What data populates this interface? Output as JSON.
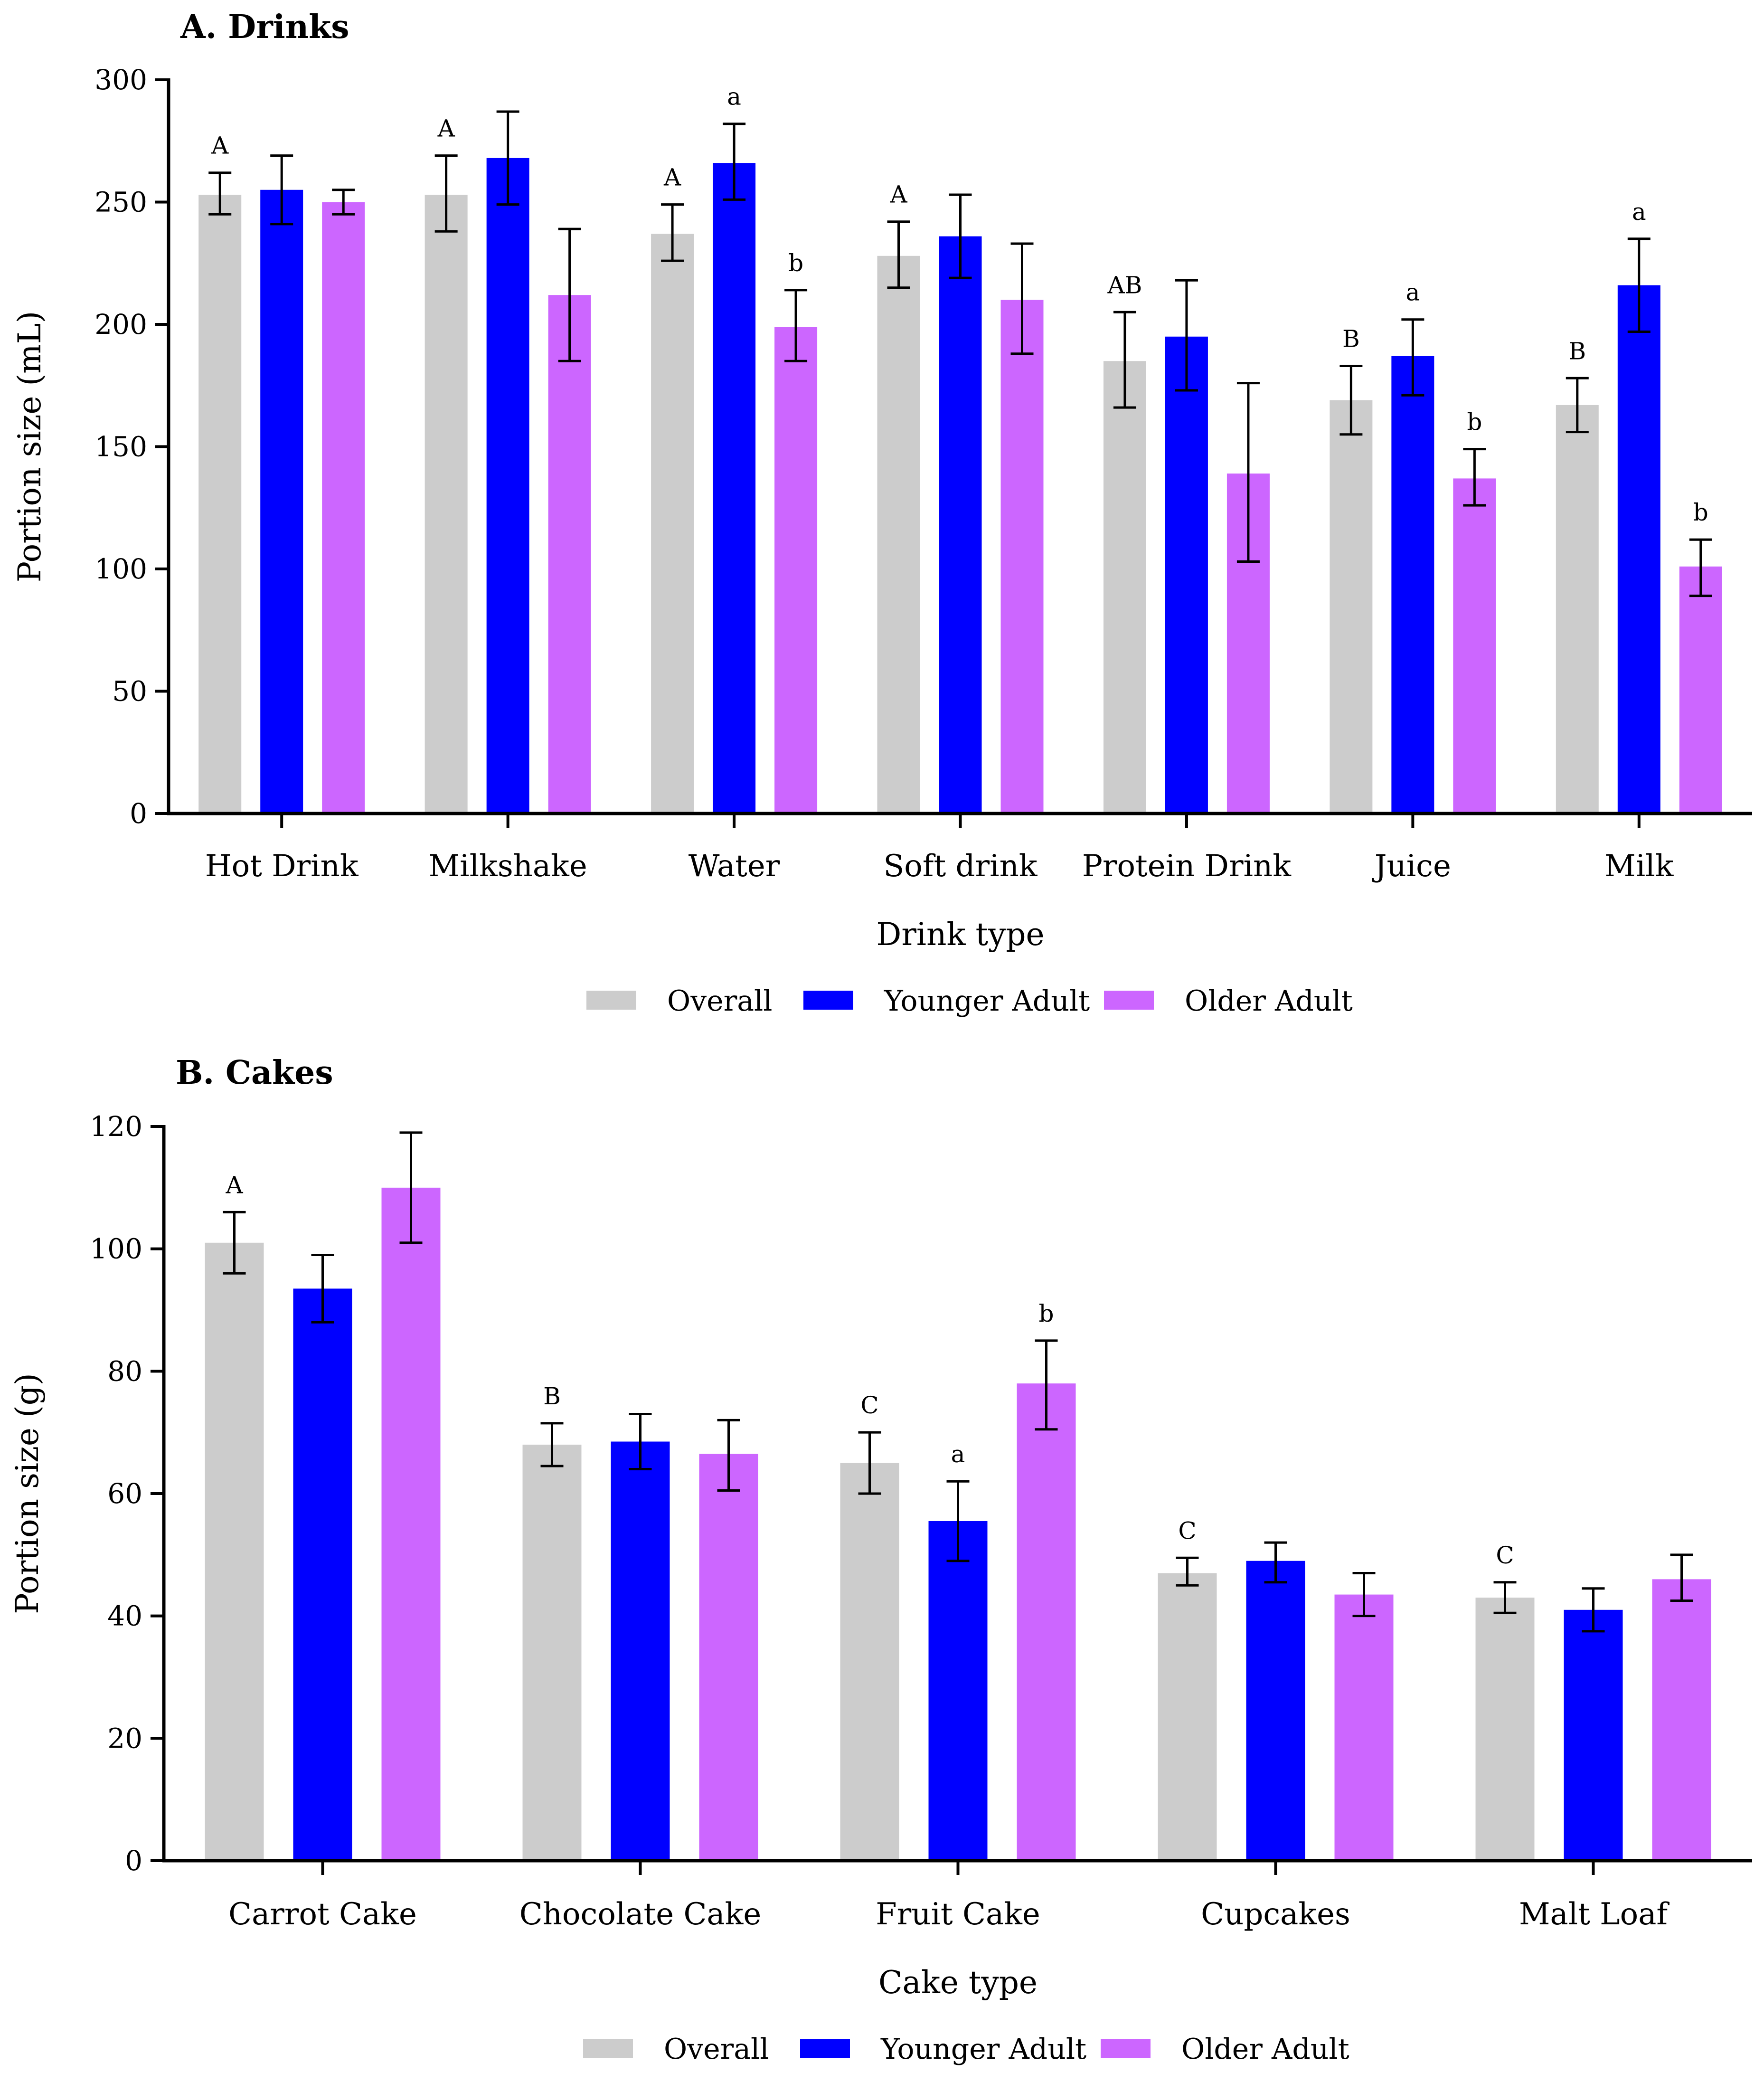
{
  "chart_data": [
    {
      "type": "bar",
      "title": "A. Drinks",
      "xlabel": "Drink type",
      "ylabel": "Portion size (mL)",
      "ylim": [
        0,
        300
      ],
      "yticks": [
        0,
        50,
        100,
        150,
        200,
        250,
        300
      ],
      "categories": [
        "Hot Drink",
        "Milkshake",
        "Water",
        "Soft drink",
        "Protein Drink",
        "Juice",
        "Milk"
      ],
      "series": [
        {
          "name": "Overall",
          "color": "#cccccc",
          "values": [
            253,
            253,
            237,
            228,
            185,
            169,
            167
          ],
          "err_low": [
            245,
            238,
            226,
            215,
            166,
            155,
            156
          ],
          "err_high": [
            262,
            269,
            249,
            242,
            205,
            183,
            178
          ]
        },
        {
          "name": "Younger Adult",
          "color": "#0000ff",
          "values": [
            255,
            268,
            266,
            236,
            195,
            187,
            216
          ],
          "err_low": [
            241,
            249,
            251,
            219,
            173,
            171,
            197
          ],
          "err_high": [
            269,
            287,
            282,
            253,
            218,
            202,
            235
          ]
        },
        {
          "name": "Older Adult",
          "color": "#cc66ff",
          "values": [
            250,
            212,
            199,
            210,
            139,
            137,
            101
          ],
          "err_low": [
            245,
            185,
            185,
            188,
            103,
            126,
            89
          ],
          "err_high": [
            255,
            239,
            214,
            233,
            176,
            149,
            112
          ]
        }
      ],
      "annotations": [
        {
          "category": 0,
          "series": 0,
          "text": "A"
        },
        {
          "category": 1,
          "series": 0,
          "text": "A"
        },
        {
          "category": 2,
          "series": 0,
          "text": "A"
        },
        {
          "category": 2,
          "series": 1,
          "text": "a"
        },
        {
          "category": 2,
          "series": 2,
          "text": "b"
        },
        {
          "category": 3,
          "series": 0,
          "text": "A"
        },
        {
          "category": 4,
          "series": 0,
          "text": "AB"
        },
        {
          "category": 5,
          "series": 0,
          "text": "B"
        },
        {
          "category": 5,
          "series": 1,
          "text": "a"
        },
        {
          "category": 5,
          "series": 2,
          "text": "b"
        },
        {
          "category": 6,
          "series": 0,
          "text": "B"
        },
        {
          "category": 6,
          "series": 1,
          "text": "a"
        },
        {
          "category": 6,
          "series": 2,
          "text": "b"
        }
      ],
      "legend": "bottom"
    },
    {
      "type": "bar",
      "title": "B. Cakes",
      "xlabel": "Cake type",
      "ylabel": "Portion size (g)",
      "ylim": [
        0,
        120
      ],
      "yticks": [
        0,
        20,
        40,
        60,
        80,
        100,
        120
      ],
      "categories": [
        "Carrot Cake",
        "Chocolate Cake",
        "Fruit Cake",
        "Cupcakes",
        "Malt Loaf"
      ],
      "series": [
        {
          "name": "Overall",
          "color": "#cccccc",
          "values": [
            101,
            68,
            65,
            47,
            43
          ],
          "err_low": [
            96,
            64.5,
            60,
            45,
            40.5
          ],
          "err_high": [
            106,
            71.5,
            70,
            49.5,
            45.5
          ]
        },
        {
          "name": "Younger Adult",
          "color": "#0000ff",
          "values": [
            93.5,
            68.5,
            55.5,
            49,
            41
          ],
          "err_low": [
            88,
            64,
            49,
            45.5,
            37.5
          ],
          "err_high": [
            99,
            73,
            62,
            52,
            44.5
          ]
        },
        {
          "name": "Older Adult",
          "color": "#cc66ff",
          "values": [
            110,
            66.5,
            78,
            43.5,
            46
          ],
          "err_low": [
            101,
            60.5,
            70.5,
            40,
            42.5
          ],
          "err_high": [
            119,
            72,
            85,
            47,
            50
          ]
        }
      ],
      "annotations": [
        {
          "category": 0,
          "series": 0,
          "text": "A"
        },
        {
          "category": 1,
          "series": 0,
          "text": "B"
        },
        {
          "category": 2,
          "series": 0,
          "text": "C"
        },
        {
          "category": 2,
          "series": 1,
          "text": "a"
        },
        {
          "category": 2,
          "series": 2,
          "text": "b"
        },
        {
          "category": 3,
          "series": 0,
          "text": "C"
        },
        {
          "category": 4,
          "series": 0,
          "text": "C"
        }
      ],
      "legend": "bottom"
    }
  ]
}
